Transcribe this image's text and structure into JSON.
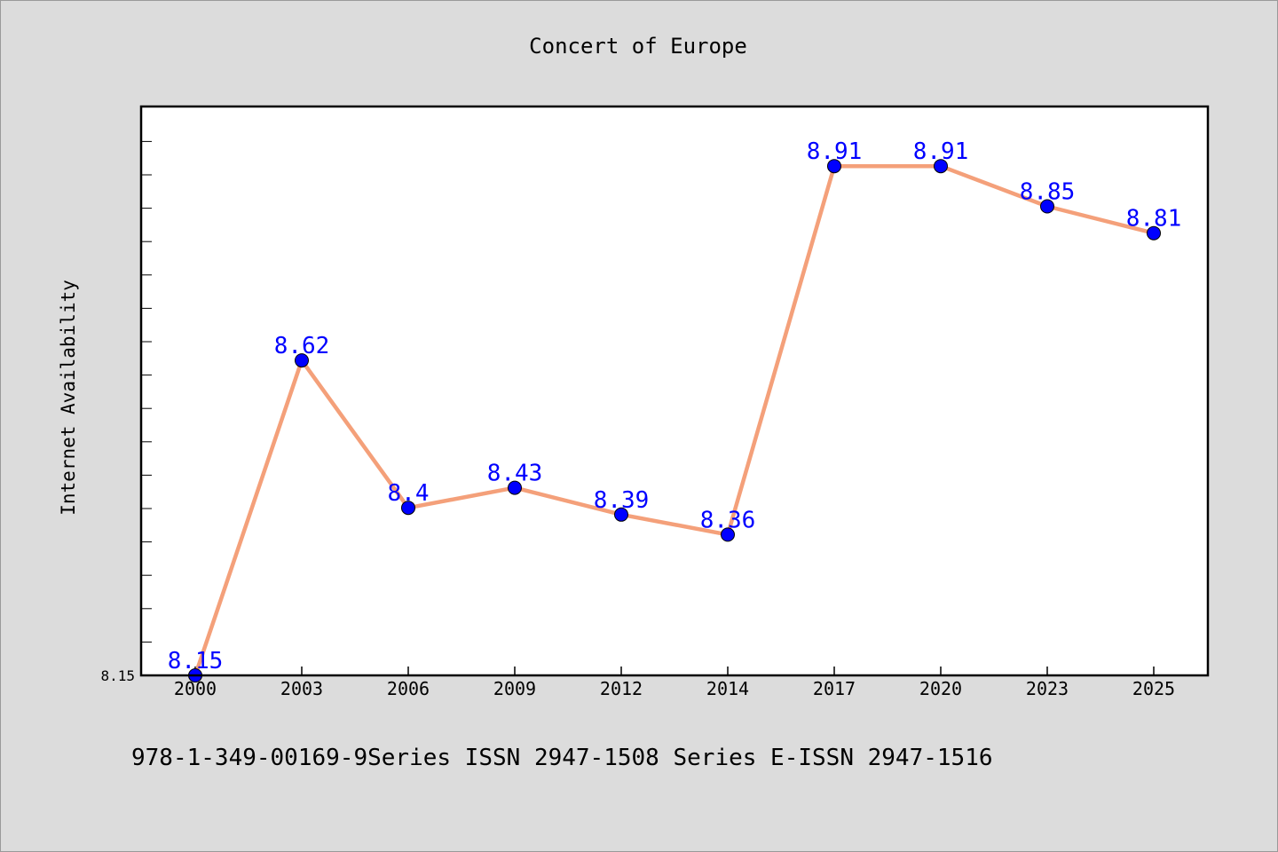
{
  "chart_data": {
    "type": "line",
    "title": "Concert of Europe",
    "xlabel": "",
    "ylabel": "Internet Availability",
    "categories": [
      "2000",
      "2003",
      "2006",
      "2009",
      "2012",
      "2014",
      "2017",
      "2020",
      "2023",
      "2025"
    ],
    "series": [
      {
        "values": [
          8.15,
          8.62,
          8.4,
          8.43,
          8.39,
          8.36,
          8.91,
          8.91,
          8.85,
          8.81
        ],
        "line_color": "#f4a07a",
        "marker_color": "#0000ff",
        "label_color": "#0000ff"
      }
    ],
    "y_tick_labels": [
      "8.15"
    ],
    "ylim": [
      8.15,
      8.999
    ],
    "grid": false,
    "legend": "none"
  },
  "footer_text": "978-1-349-00169-9Series ISSN 2947-1508 Series E-ISSN 2947-1516",
  "colors": {
    "background": "#dcdcdc",
    "plot_background": "#ffffff",
    "axis": "#000000"
  }
}
